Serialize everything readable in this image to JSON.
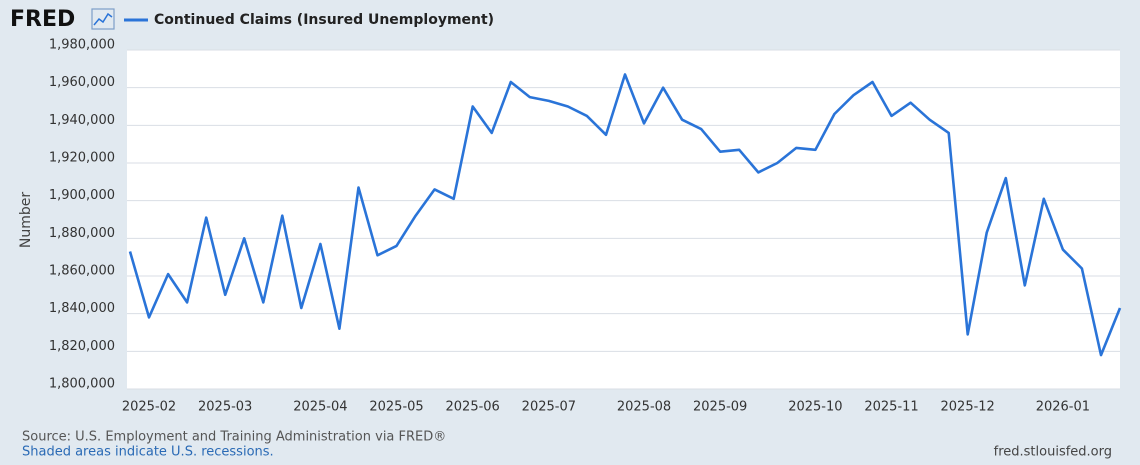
{
  "chart_data": {
    "type": "line",
    "logo": "FRED",
    "ylabel": "Number",
    "source": "Source: U.S. Employment and Training Administration via FRED®",
    "note": "Shaded areas indicate U.S. recessions.",
    "site": "fred.stlouisfed.org",
    "categories": [
      null,
      "2025-02",
      null,
      null,
      null,
      "2025-03",
      null,
      null,
      null,
      null,
      "2025-04",
      null,
      null,
      null,
      "2025-05",
      null,
      null,
      null,
      "2025-06",
      null,
      null,
      null,
      "2025-07",
      null,
      null,
      null,
      null,
      "2025-08",
      null,
      null,
      null,
      "2025-09",
      null,
      null,
      null,
      null,
      "2025-10",
      null,
      null,
      null,
      "2025-11",
      null,
      null,
      null,
      "2025-12",
      null,
      null,
      null,
      null,
      "2026-01",
      null,
      null,
      null
    ],
    "series": [
      {
        "name": "Continued Claims (Insured Unemployment)",
        "color": "#2a74d8",
        "values": [
          1873000,
          1838000,
          1861000,
          1846000,
          1891000,
          1850000,
          1880000,
          1846000,
          1892000,
          1843000,
          1877000,
          1832000,
          1907000,
          1871000,
          1876000,
          1892000,
          1906000,
          1901000,
          1950000,
          1936000,
          1963000,
          1955000,
          1953000,
          1950000,
          1945000,
          1935000,
          1967000,
          1941000,
          1960000,
          1943000,
          1938000,
          1926000,
          1927000,
          1915000,
          1920000,
          1928000,
          1927000,
          1946000,
          1956000,
          1963000,
          1945000,
          1952000,
          1943000,
          1936000,
          1829000,
          1883000,
          1912000,
          1855000,
          1901000,
          1874000,
          1864000,
          1818000,
          1843000
        ]
      }
    ],
    "ylim": [
      1800000,
      1980000
    ],
    "yticks": [
      {
        "value": 1800000,
        "label": "1,800,000"
      },
      {
        "value": 1820000,
        "label": "1,820,000"
      },
      {
        "value": 1840000,
        "label": "1,840,000"
      },
      {
        "value": 1860000,
        "label": "1,860,000"
      },
      {
        "value": 1880000,
        "label": "1,880,000"
      },
      {
        "value": 1900000,
        "label": "1,900,000"
      },
      {
        "value": 1920000,
        "label": "1,920,000"
      },
      {
        "value": 1940000,
        "label": "1,940,000"
      },
      {
        "value": 1960000,
        "label": "1,960,000"
      },
      {
        "value": 1980000,
        "label": "1,980,000"
      }
    ],
    "grid": true
  }
}
